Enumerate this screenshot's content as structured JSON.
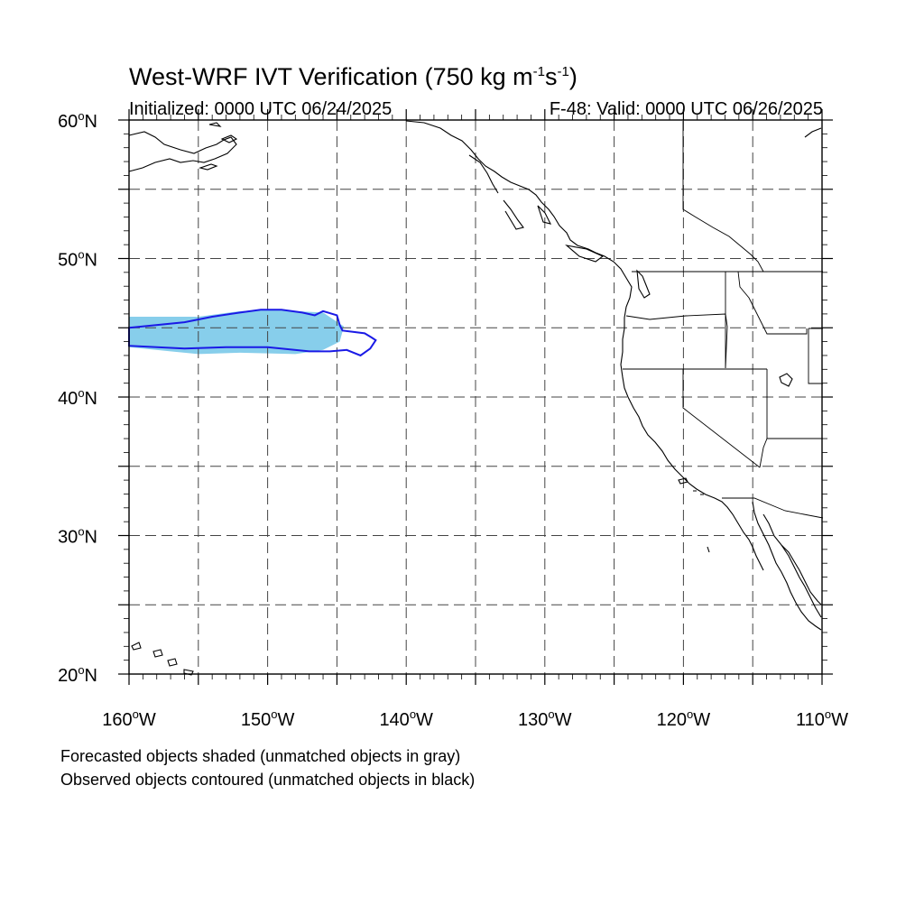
{
  "title": {
    "main": "West-WRF IVT Verification (750 kg m",
    "sup1": "-1",
    "mid": "s",
    "sup2": "-1",
    "end": ")"
  },
  "initialized": "Initialized: 0000 UTC 06/24/2025",
  "valid": "F-48: Valid: 0000 UTC 06/26/2025",
  "map": {
    "lon_range": [
      -160,
      -110
    ],
    "lat_range": [
      20,
      60
    ],
    "grid": "dashed every 5 degrees",
    "lat_labels": [
      {
        "value": 60,
        "text": "60",
        "suffix": "N"
      },
      {
        "value": 50,
        "text": "50",
        "suffix": "N"
      },
      {
        "value": 40,
        "text": "40",
        "suffix": "N"
      },
      {
        "value": 30,
        "text": "30",
        "suffix": "N"
      },
      {
        "value": 20,
        "text": "20",
        "suffix": "N"
      }
    ],
    "lon_labels": [
      {
        "value": -160,
        "text": "160",
        "suffix": "W"
      },
      {
        "value": -150,
        "text": "150",
        "suffix": "W"
      },
      {
        "value": -140,
        "text": "140",
        "suffix": "W"
      },
      {
        "value": -130,
        "text": "130",
        "suffix": "W"
      },
      {
        "value": -120,
        "text": "120",
        "suffix": "W"
      },
      {
        "value": -110,
        "text": "110",
        "suffix": "W"
      }
    ],
    "forecast_object": {
      "color": "#87ceeb",
      "polygon": [
        [
          -160,
          45.8
        ],
        [
          -155,
          45.8
        ],
        [
          -152,
          46.2
        ],
        [
          -150,
          46.3
        ],
        [
          -146,
          46.1
        ],
        [
          -144.5,
          45.1
        ],
        [
          -144.8,
          44.0
        ],
        [
          -146,
          43.4
        ],
        [
          -148,
          43.1
        ],
        [
          -152,
          43.2
        ],
        [
          -155,
          43.1
        ],
        [
          -157,
          43.3
        ],
        [
          -160,
          43.6
        ]
      ]
    },
    "observed_object": {
      "color": "#1a1ae6",
      "polygon": [
        [
          -160,
          45.0
        ],
        [
          -156,
          45.4
        ],
        [
          -154,
          45.8
        ],
        [
          -152,
          46.1
        ],
        [
          -150.5,
          46.3
        ],
        [
          -149,
          46.3
        ],
        [
          -147.5,
          46.1
        ],
        [
          -146.6,
          45.9
        ],
        [
          -146,
          46.2
        ],
        [
          -145,
          45.9
        ],
        [
          -144.8,
          45.2
        ],
        [
          -144.6,
          44.8
        ],
        [
          -143.0,
          44.6
        ],
        [
          -142.5,
          44.3
        ],
        [
          -142.2,
          44.1
        ],
        [
          -142.6,
          43.5
        ],
        [
          -143.3,
          43.0
        ],
        [
          -144.3,
          43.4
        ],
        [
          -145.5,
          43.3
        ],
        [
          -147,
          43.3
        ],
        [
          -150,
          43.6
        ],
        [
          -153,
          43.6
        ],
        [
          -156,
          43.5
        ],
        [
          -160,
          43.7
        ]
      ]
    }
  },
  "notes": [
    "Forecasted objects shaded (unmatched objects in gray)",
    "Observed objects contoured (unmatched objects in black)"
  ]
}
